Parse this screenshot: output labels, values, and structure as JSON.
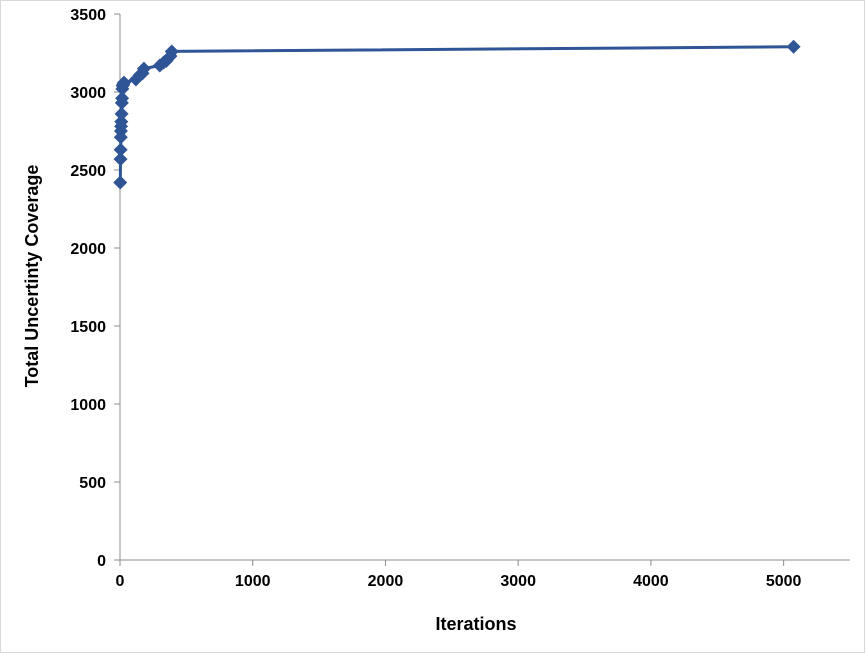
{
  "chart_data": {
    "type": "line",
    "title": "",
    "xlabel": "Iterations",
    "ylabel": "Total Uncertinty Coverage",
    "xlim": [
      0,
      5500
    ],
    "ylim": [
      0,
      3500
    ],
    "xticks": [
      0,
      1000,
      2000,
      3000,
      4000,
      5000
    ],
    "yticks": [
      0,
      500,
      1000,
      1500,
      2000,
      2500,
      3000,
      3500
    ],
    "xtick_labels": [
      "0",
      "1000",
      "2000",
      "3000",
      "4000",
      "5000"
    ],
    "ytick_labels": [
      "0",
      "500",
      "1000",
      "1500",
      "2000",
      "2500",
      "3000",
      "3500"
    ],
    "grid": false,
    "legend": "none",
    "marker": "diamond",
    "color": "#2f5597",
    "series": [
      {
        "x": [
          2,
          4,
          5,
          6,
          7,
          8,
          10,
          12,
          14,
          16,
          18,
          20,
          25,
          30,
          120,
          150,
          170,
          180,
          300,
          330,
          350,
          380,
          390,
          5075
        ],
        "y": [
          2420,
          2570,
          2630,
          2710,
          2750,
          2780,
          2810,
          2860,
          2930,
          2960,
          3020,
          3040,
          3050,
          3060,
          3080,
          3110,
          3120,
          3150,
          3170,
          3190,
          3200,
          3230,
          3260,
          3290
        ]
      }
    ]
  }
}
